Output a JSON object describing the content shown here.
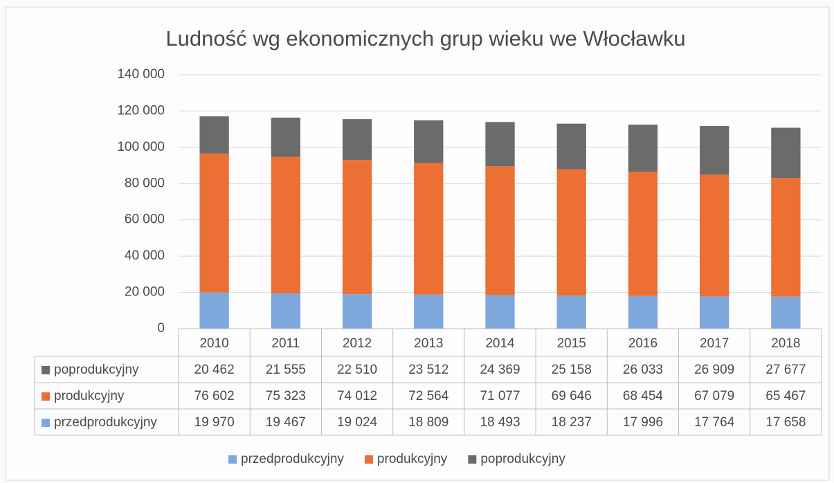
{
  "chart_data": {
    "type": "stacked_bar",
    "title": "Ludność wg ekonomicznych grup wieku we Włocławku",
    "categories": [
      "2010",
      "2011",
      "2012",
      "2013",
      "2014",
      "2015",
      "2016",
      "2017",
      "2018"
    ],
    "series": [
      {
        "name": "przedprodukcyjny",
        "color": "#7ea8dc",
        "values": [
          19970,
          19467,
          19024,
          18809,
          18493,
          18237,
          17996,
          17764,
          17658
        ],
        "value_labels": [
          "19 970",
          "19 467",
          "19 024",
          "18 809",
          "18 493",
          "18 237",
          "17 996",
          "17 764",
          "17 658"
        ]
      },
      {
        "name": "produkcyjny",
        "color": "#ec7034",
        "values": [
          76602,
          75323,
          74012,
          72564,
          71077,
          69646,
          68454,
          67079,
          65467
        ],
        "value_labels": [
          "76 602",
          "75 323",
          "74 012",
          "72 564",
          "71 077",
          "69 646",
          "68 454",
          "67 079",
          "65 467"
        ]
      },
      {
        "name": "poprodukcyjny",
        "color": "#6b6b6b",
        "values": [
          20462,
          21555,
          22510,
          23512,
          24369,
          25158,
          26033,
          26909,
          27677
        ],
        "value_labels": [
          "20 462",
          "21 555",
          "22 510",
          "23 512",
          "24 369",
          "25 158",
          "26 033",
          "26 909",
          "27 677"
        ]
      }
    ],
    "ylim": [
      0,
      140000
    ],
    "yticks": [
      0,
      {
        "value": 20000,
        "label": "20 000"
      },
      {
        "value": 40000,
        "label": "40 000"
      },
      {
        "value": 60000,
        "label": "60 000"
      },
      {
        "value": 80000,
        "label": "80 000"
      },
      {
        "value": 100000,
        "label": "100 000"
      },
      {
        "value": 120000,
        "label": "120 000"
      },
      {
        "value": 140000,
        "label": "140 000"
      }
    ],
    "grid": true,
    "legend": "bottom"
  }
}
